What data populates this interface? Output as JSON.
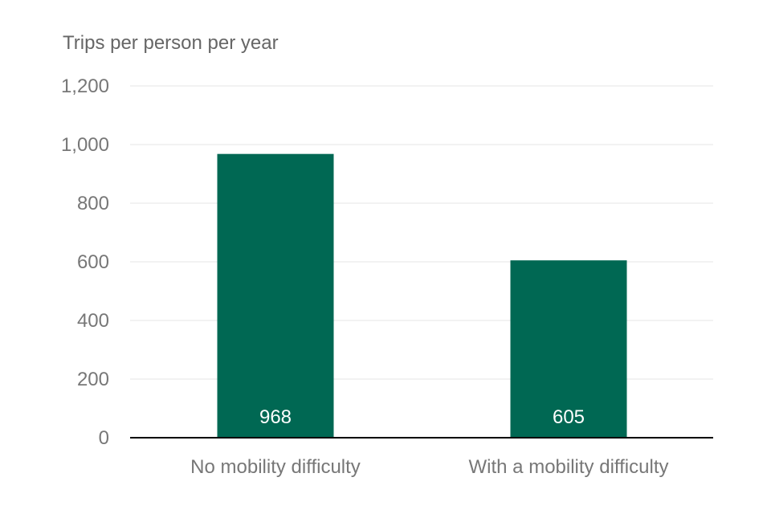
{
  "chart_data": {
    "type": "bar",
    "title": "",
    "xlabel": "",
    "ylabel": "Trips per person per year",
    "categories": [
      "No mobility difficulty",
      "With a mobility difficulty"
    ],
    "values": [
      968,
      605
    ],
    "data_labels": [
      "968",
      "605"
    ],
    "ylim": [
      0,
      1200
    ],
    "yticks": [
      0,
      200,
      400,
      600,
      800,
      1000,
      1200
    ],
    "ytick_labels": [
      "0",
      "200",
      "400",
      "600",
      "800",
      "1,000",
      "1,200"
    ],
    "grid": true,
    "legend": "none",
    "colors": {
      "bar": "#006853",
      "gridline": "#e6e6e6",
      "axis": "#000000",
      "text": "#777777",
      "data_label": "#ffffff"
    }
  }
}
